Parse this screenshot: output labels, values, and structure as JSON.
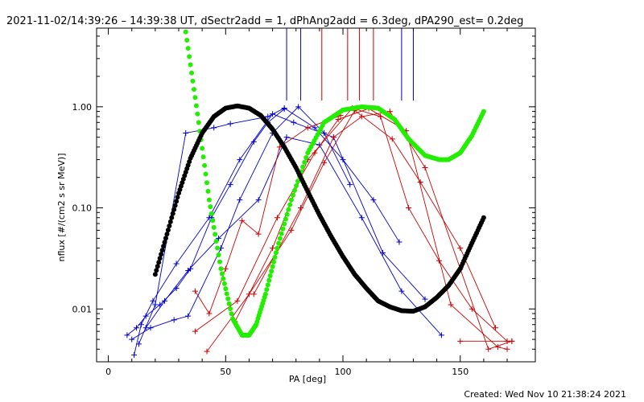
{
  "chart_data": {
    "type": "line",
    "title": "2021-11-02/14:39:26 – 14:39:38 UT, dSectr2add = 1, dPhAng2add = 6.3deg, dPA290_est=  0.2deg",
    "xlabel": "PA [deg]",
    "ylabel": "nflux [#/(cm2 s sr MeV)]",
    "footer": "Created: Wed Nov 10 21:38:24 2021",
    "xlim": [
      -5,
      182
    ],
    "ylim": [
      0.003,
      6.0
    ],
    "yscale": "log",
    "x_ticks": [
      0,
      50,
      100,
      150
    ],
    "x_tick_labels": [
      "0",
      "50",
      "100",
      "150"
    ],
    "y_ticks": [
      0.01,
      0.1,
      1.0
    ],
    "y_tick_labels": [
      "0.01",
      "0.10",
      "1.00"
    ],
    "colors": {
      "blue": "#0000cc",
      "red": "#cc0000",
      "green": "#22ee00",
      "black": "#000000"
    },
    "vertical_markers": [
      {
        "color": "blue",
        "x": [
          76,
          82,
          125,
          130
        ]
      },
      {
        "color": "red",
        "x": [
          91,
          102,
          107,
          113
        ]
      }
    ],
    "series": [
      {
        "color": "blue",
        "marker": "plus",
        "lines": [
          {
            "x": [
              8,
              12,
              16,
              22,
              29,
              35,
              44,
              52,
              62,
              68,
              75
            ],
            "y": [
              0.0055,
              0.0065,
              0.0085,
              0.011,
              0.016,
              0.025,
              0.08,
              0.17,
              0.45,
              0.7,
              0.95
            ]
          },
          {
            "x": [
              10,
              18,
              28,
              34,
              48,
              56,
              70,
              81,
              92,
              103
            ],
            "y": [
              0.005,
              0.0065,
              0.0078,
              0.0085,
              0.04,
              0.12,
              0.55,
              1.0,
              0.55,
              0.17
            ]
          },
          {
            "x": [
              13,
              20,
              33,
              45,
              52,
              68,
              75,
              88,
              100,
              113,
              124
            ],
            "y": [
              0.0045,
              0.011,
              0.55,
              0.62,
              0.68,
              0.8,
              0.97,
              0.62,
              0.3,
              0.12,
              0.046
            ]
          },
          {
            "x": [
              11,
              14,
              19,
              29,
              43,
              56,
              70,
              79,
              96,
              117,
              135
            ],
            "y": [
              0.0035,
              0.007,
              0.012,
              0.028,
              0.08,
              0.3,
              0.85,
              0.7,
              0.5,
              0.036,
              0.0125
            ]
          },
          {
            "x": [
              16,
              24,
              34,
              47,
              64,
              76,
              90,
              108,
              125,
              142
            ],
            "y": [
              0.0065,
              0.012,
              0.024,
              0.05,
              0.12,
              0.5,
              0.42,
              0.08,
              0.015,
              0.0055
            ]
          }
        ]
      },
      {
        "color": "red",
        "marker": "plus",
        "lines": [
          {
            "x": [
              37,
              43,
              50,
              57,
              64,
              73,
              85,
              99
            ],
            "y": [
              0.015,
              0.009,
              0.025,
              0.075,
              0.055,
              0.4,
              0.62,
              0.82
            ]
          },
          {
            "x": [
              42,
              60,
              78,
              92,
              105,
              121,
              133,
              150,
              165
            ],
            "y": [
              0.0038,
              0.014,
              0.06,
              0.28,
              0.92,
              0.48,
              0.18,
              0.04,
              0.0065
            ]
          },
          {
            "x": [
              54,
              70,
              85,
              104,
              116,
              128,
              141,
              155,
              170
            ],
            "y": [
              0.0075,
              0.04,
              0.3,
              0.97,
              0.8,
              0.1,
              0.03,
              0.01,
              0.0048
            ]
          },
          {
            "x": [
              62,
              82,
              96,
              108,
              120,
              135,
              150,
              162,
              172
            ],
            "y": [
              0.014,
              0.1,
              0.5,
              0.8,
              0.9,
              0.25,
              0.025,
              0.004,
              0.0048
            ]
          },
          {
            "x": [
              37,
              55,
              72,
              88,
              98,
              111,
              127,
              146,
              166,
              170
            ],
            "y": [
              0.006,
              0.012,
              0.08,
              0.35,
              0.75,
              0.96,
              0.58,
              0.011,
              0.0042,
              0.004
            ]
          },
          {
            "x": [
              150,
              172
            ],
            "y": [
              0.0048,
              0.0048
            ]
          }
        ]
      },
      {
        "color": "green",
        "style": "thick-dots",
        "x": [
          33,
          38,
          43,
          48,
          53,
          57,
          60,
          63,
          67,
          72,
          78,
          85,
          92,
          100,
          108,
          115,
          122,
          128,
          135,
          141,
          145,
          150,
          155,
          160
        ],
        "y": [
          5.5,
          0.85,
          0.12,
          0.025,
          0.008,
          0.0055,
          0.0055,
          0.007,
          0.014,
          0.04,
          0.12,
          0.35,
          0.7,
          0.93,
          1.0,
          0.97,
          0.75,
          0.48,
          0.33,
          0.3,
          0.3,
          0.35,
          0.52,
          0.9
        ]
      },
      {
        "color": "black",
        "style": "thick-dots",
        "x": [
          20,
          25,
          30,
          35,
          40,
          45,
          50,
          55,
          60,
          65,
          70,
          75,
          80,
          85,
          90,
          95,
          100,
          105,
          110,
          115,
          120,
          125,
          130,
          135,
          140,
          145,
          150,
          155,
          160
        ],
        "y": [
          0.022,
          0.055,
          0.14,
          0.31,
          0.55,
          0.8,
          0.97,
          1.02,
          0.97,
          0.82,
          0.6,
          0.4,
          0.25,
          0.145,
          0.085,
          0.052,
          0.033,
          0.022,
          0.016,
          0.012,
          0.0105,
          0.0096,
          0.0095,
          0.0105,
          0.013,
          0.017,
          0.025,
          0.045,
          0.08
        ]
      }
    ]
  }
}
